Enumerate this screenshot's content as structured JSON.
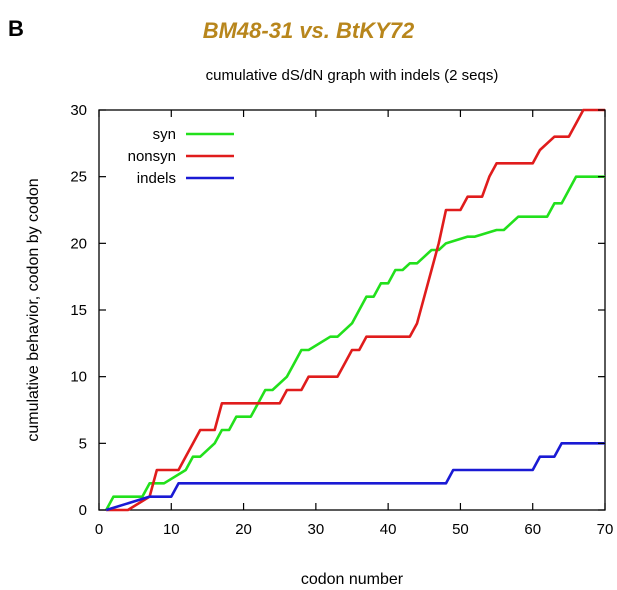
{
  "panel_letter": "B",
  "figure_title": "BM48-31 vs. BtKY72",
  "chart_data": {
    "type": "line",
    "title": "cumulative dS/dN graph with indels (2 seqs)",
    "xlabel": "codon number",
    "ylabel": "cumulative behavior, codon by codon",
    "xlim": [
      0,
      70
    ],
    "ylim": [
      0,
      30
    ],
    "xticks": [
      0,
      10,
      20,
      30,
      40,
      50,
      60,
      70
    ],
    "yticks": [
      0,
      5,
      10,
      15,
      20,
      25,
      30
    ],
    "grid": false,
    "legend_position": "top-left",
    "series": [
      {
        "name": "syn",
        "color": "#22e01c",
        "step": true,
        "x": [
          1,
          2,
          6,
          7,
          9,
          12,
          13,
          14,
          16,
          17,
          18,
          19,
          21,
          22,
          23,
          24,
          26,
          27,
          28,
          29,
          32,
          33,
          35,
          36,
          37,
          38,
          39,
          40,
          41,
          42,
          43,
          44,
          45,
          46,
          47,
          48,
          51,
          52,
          55,
          56,
          58,
          59,
          62,
          63,
          64,
          65,
          66,
          67,
          70
        ],
        "y": [
          0,
          1,
          1,
          2,
          2,
          3,
          4,
          4,
          5,
          6,
          6,
          7,
          7,
          8,
          9,
          9,
          10,
          11,
          12,
          12,
          13,
          13,
          14,
          15,
          16,
          16,
          17,
          17,
          18,
          18,
          18.5,
          18.5,
          19,
          19.5,
          19.5,
          20,
          20.5,
          20.5,
          21,
          21,
          22,
          22,
          22,
          23,
          23,
          24,
          25,
          25,
          25
        ]
      },
      {
        "name": "nonsyn",
        "color": "#e01c1c",
        "step": true,
        "x": [
          1,
          4,
          7,
          8,
          11,
          12,
          13,
          14,
          16,
          17,
          25,
          26,
          28,
          29,
          33,
          34,
          35,
          36,
          37,
          43,
          44,
          45,
          46,
          47,
          48,
          50,
          51,
          53,
          54,
          55,
          60,
          61,
          63,
          65,
          66,
          67,
          68,
          70
        ],
        "y": [
          0,
          0,
          1,
          3,
          3,
          4,
          5,
          6,
          6,
          8,
          8,
          9,
          9,
          10,
          10,
          11,
          12,
          12,
          13,
          13,
          14,
          16,
          18,
          20,
          22.5,
          22.5,
          23.5,
          23.5,
          25,
          26,
          26,
          27,
          28,
          28,
          29,
          30,
          30,
          30
        ]
      },
      {
        "name": "indels",
        "color": "#1a1ad4",
        "step": true,
        "x": [
          1,
          7,
          10,
          11,
          48,
          49,
          60,
          61,
          63,
          64,
          70
        ],
        "y": [
          0,
          1,
          1,
          2,
          2,
          3,
          3,
          4,
          4,
          5,
          5
        ]
      }
    ]
  }
}
